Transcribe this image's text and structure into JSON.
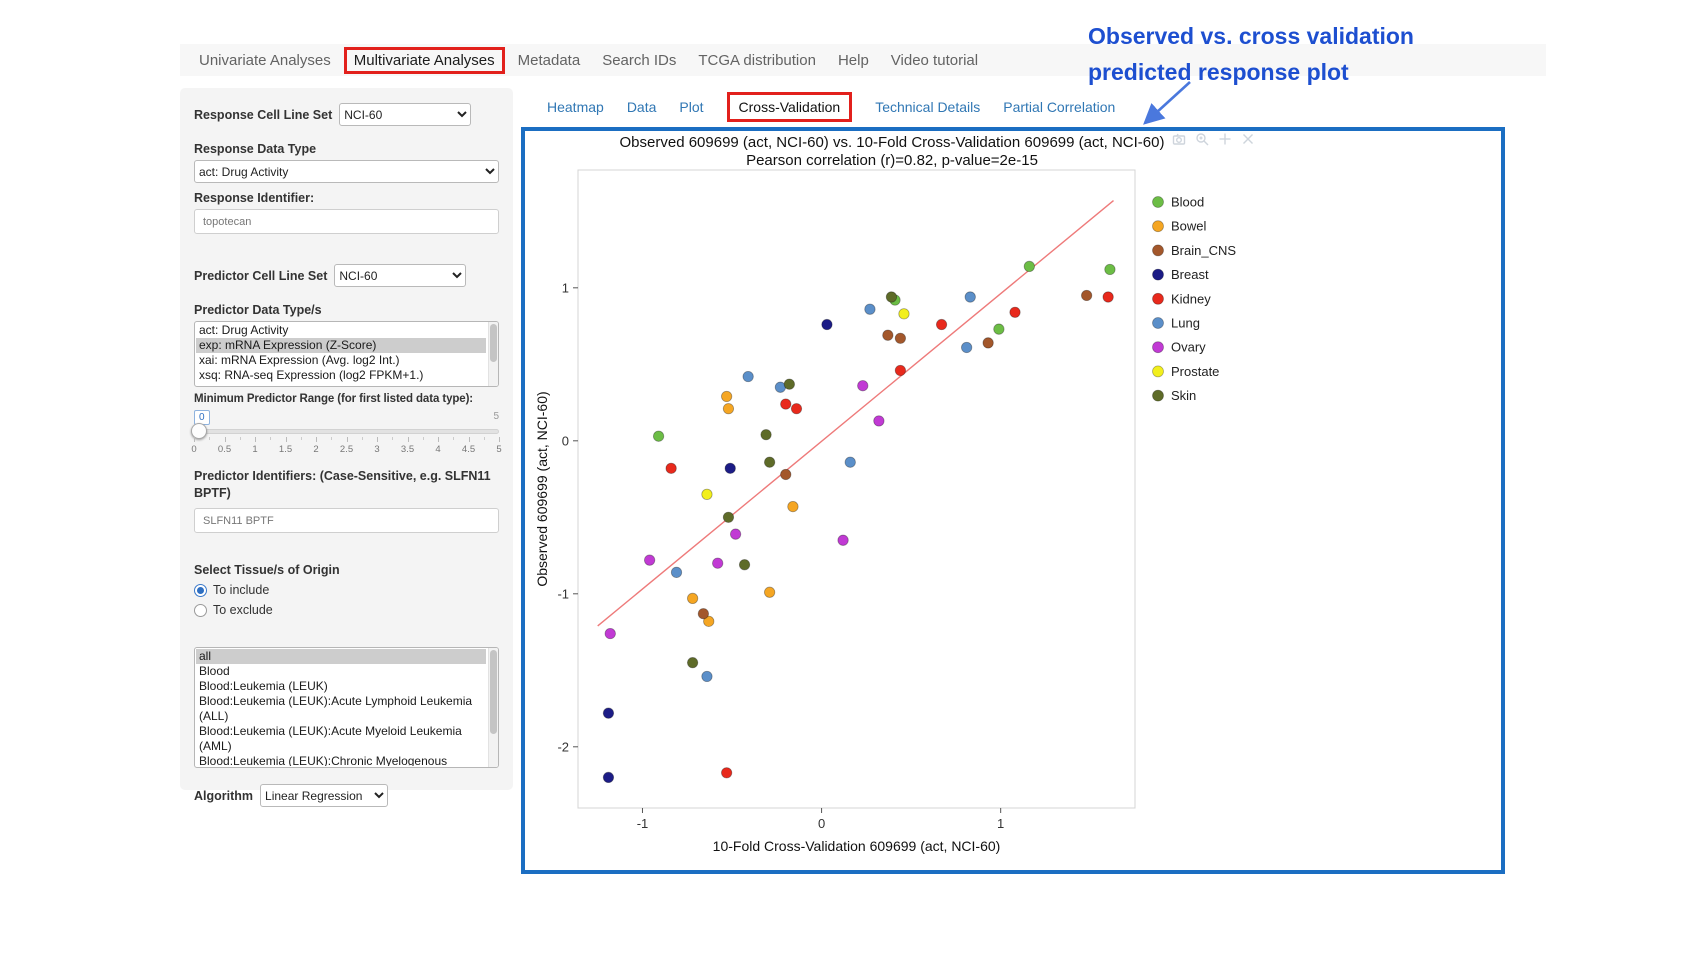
{
  "colors": {
    "highlight_red": "#e2201c",
    "annotation_blue": "#1d4fd0",
    "plot_border_blue": "#1b6ec2",
    "link_blue": "#3077b4",
    "regression_line_red": "#ee7a7a"
  },
  "nav": {
    "tabs": [
      {
        "label": "Univariate Analyses",
        "boxed": false
      },
      {
        "label": "Multivariate Analyses",
        "boxed": true
      },
      {
        "label": "Metadata",
        "boxed": false
      },
      {
        "label": "Search IDs",
        "boxed": false
      },
      {
        "label": "TCGA distribution",
        "boxed": false
      },
      {
        "label": "Help",
        "boxed": false
      },
      {
        "label": "Video tutorial",
        "boxed": false
      }
    ]
  },
  "annotation": {
    "line1": "Observed vs. cross validation",
    "line2": "predicted response plot"
  },
  "sidebar": {
    "response_cell_line_set": {
      "label": "Response Cell Line Set",
      "value": "NCI-60"
    },
    "response_data_type": {
      "label": "Response Data Type",
      "value": "act: Drug Activity"
    },
    "response_identifier": {
      "label": "Response Identifier:",
      "value": "topotecan"
    },
    "predictor_cell_line_set": {
      "label": "Predictor Cell Line Set",
      "value": "NCI-60"
    },
    "predictor_data_types": {
      "label": "Predictor Data Type/s",
      "options": [
        "act: Drug Activity",
        "exp: mRNA Expression (Z-Score)",
        "xai: mRNA Expression (Avg. log2 Int.)",
        "xsq: RNA-seq Expression (log2 FPKM+1.)"
      ],
      "selected": "exp: mRNA Expression (Z-Score)"
    },
    "min_predictor_range": {
      "label": "Minimum Predictor Range (for first listed data type):",
      "value": "0",
      "max_label": "5",
      "ticks": [
        "0",
        "0.5",
        "1",
        "1.5",
        "2",
        "2.5",
        "3",
        "3.5",
        "4",
        "4.5",
        "5"
      ]
    },
    "predictor_identifiers": {
      "label": "Predictor Identifiers: (Case-Sensitive, e.g. SLFN11 BPTF)",
      "value": "SLFN11 BPTF"
    },
    "tissue_origin": {
      "label": "Select Tissue/s of Origin",
      "radios": [
        {
          "label": "To include",
          "checked": true
        },
        {
          "label": "To exclude",
          "checked": false
        }
      ],
      "options": [
        "all",
        "Blood",
        "Blood:Leukemia (LEUK)",
        "Blood:Leukemia (LEUK):Acute Lymphoid Leukemia (ALL)",
        "Blood:Leukemia (LEUK):Acute Myeloid Leukemia (AML)",
        "Blood:Leukemia (LEUK):Chronic Myelogenous Leukemia (CML)"
      ],
      "selected": "all"
    },
    "algorithm": {
      "label": "Algorithm",
      "value": "Linear Regression"
    }
  },
  "subtabs": [
    {
      "label": "Heatmap",
      "active": false
    },
    {
      "label": "Data",
      "active": false
    },
    {
      "label": "Plot",
      "active": false
    },
    {
      "label": "Cross-Validation",
      "active": true
    },
    {
      "label": "Technical Details",
      "active": false
    },
    {
      "label": "Partial Correlation",
      "active": false
    }
  ],
  "modebar_icons": [
    "camera-icon",
    "zoom-in-icon",
    "pan-icon",
    "close-icon"
  ],
  "chart_data": {
    "type": "scatter",
    "title": "Observed 609699 (act, NCI-60) vs. 10-Fold Cross-Validation 609699 (act, NCI-60)",
    "subtitle": "Pearson correlation (r)=0.82, p-value=2e-15",
    "xlabel": "10-Fold Cross-Validation 609699 (act, NCI-60)",
    "ylabel": "Observed 609699 (act, NCI-60)",
    "xlim": [
      -1.36,
      1.75
    ],
    "ylim": [
      -2.4,
      1.77
    ],
    "xticks": [
      -1,
      0,
      1
    ],
    "yticks": [
      -2,
      -1,
      0,
      1
    ],
    "grid": false,
    "legend_position": "right",
    "regression_line": {
      "x": [
        -1.25,
        1.63
      ],
      "y": [
        -1.21,
        1.57
      ],
      "color": "#ee7a7a"
    },
    "series": [
      {
        "name": "Blood",
        "color": "#6cbd45",
        "points": [
          [
            -0.91,
            0.03
          ],
          [
            0.41,
            0.92
          ],
          [
            0.99,
            0.73
          ],
          [
            1.16,
            1.14
          ],
          [
            1.61,
            1.12
          ]
        ]
      },
      {
        "name": "Bowel",
        "color": "#f5a623",
        "points": [
          [
            -0.53,
            0.29
          ],
          [
            -0.52,
            0.21
          ],
          [
            -0.16,
            -0.43
          ],
          [
            -0.29,
            -0.99
          ],
          [
            -0.72,
            -1.03
          ],
          [
            -0.63,
            -1.18
          ]
        ]
      },
      {
        "name": "Brain_CNS",
        "color": "#a3572b",
        "points": [
          [
            0.37,
            0.69
          ],
          [
            0.44,
            0.67
          ],
          [
            0.93,
            0.64
          ],
          [
            1.48,
            0.95
          ],
          [
            -0.2,
            -0.22
          ],
          [
            -0.66,
            -1.13
          ]
        ]
      },
      {
        "name": "Breast",
        "color": "#1c1c86",
        "points": [
          [
            0.03,
            0.76
          ],
          [
            -0.51,
            -0.18
          ],
          [
            -1.19,
            -1.78
          ],
          [
            -1.19,
            -2.2
          ]
        ]
      },
      {
        "name": "Kidney",
        "color": "#e8291c",
        "points": [
          [
            -0.84,
            -0.18
          ],
          [
            -0.2,
            0.24
          ],
          [
            -0.14,
            0.21
          ],
          [
            0.44,
            0.46
          ],
          [
            0.67,
            0.76
          ],
          [
            1.08,
            0.84
          ],
          [
            1.6,
            0.94
          ],
          [
            -0.53,
            -2.17
          ]
        ]
      },
      {
        "name": "Lung",
        "color": "#5b8fc9",
        "points": [
          [
            -0.41,
            0.42
          ],
          [
            -0.23,
            0.35
          ],
          [
            0.27,
            0.86
          ],
          [
            0.83,
            0.94
          ],
          [
            0.81,
            0.61
          ],
          [
            0.16,
            -0.14
          ],
          [
            -0.81,
            -0.86
          ],
          [
            -0.64,
            -1.54
          ]
        ]
      },
      {
        "name": "Ovary",
        "color": "#c13ad4",
        "points": [
          [
            -0.96,
            -0.78
          ],
          [
            -1.18,
            -1.26
          ],
          [
            -0.48,
            -0.61
          ],
          [
            -0.58,
            -0.8
          ],
          [
            0.23,
            0.36
          ],
          [
            0.32,
            0.13
          ],
          [
            0.12,
            -0.65
          ]
        ]
      },
      {
        "name": "Prostate",
        "color": "#f2ef1d",
        "points": [
          [
            0.46,
            0.83
          ],
          [
            -0.64,
            -0.35
          ]
        ]
      },
      {
        "name": "Skin",
        "color": "#5e6b28",
        "points": [
          [
            0.39,
            0.94
          ],
          [
            -0.18,
            0.37
          ],
          [
            -0.31,
            0.04
          ],
          [
            -0.29,
            -0.14
          ],
          [
            -0.52,
            -0.5
          ],
          [
            -0.43,
            -0.81
          ],
          [
            -0.72,
            -1.45
          ]
        ]
      }
    ]
  }
}
